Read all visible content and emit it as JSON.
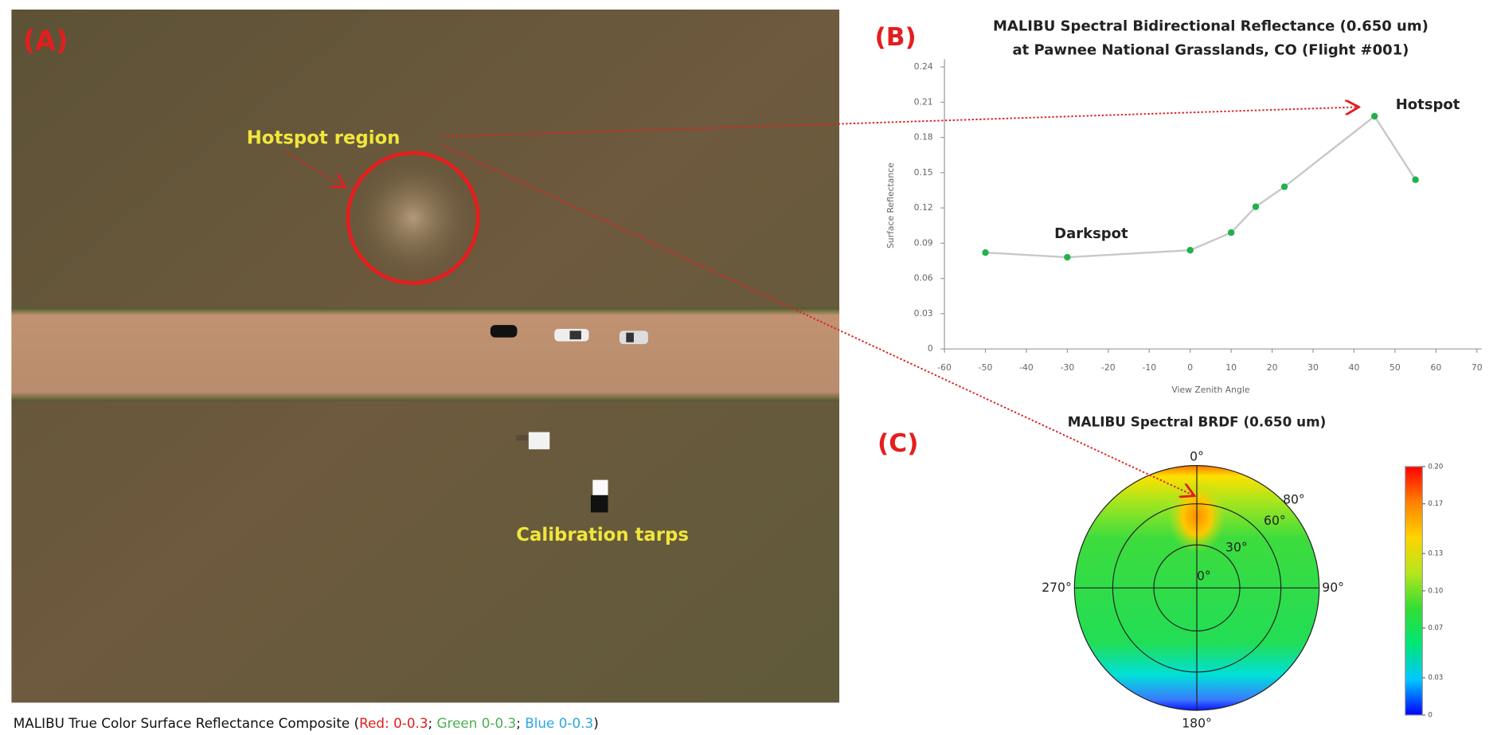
{
  "panels": {
    "a": {
      "label": "(A)",
      "hotspot_label": "Hotspot region",
      "tarps_label": "Calibration tarps",
      "caption": [
        "MALIBU True Color Surface Reflectance Composite (",
        "Red: 0-0.3",
        "; ",
        "Green 0-0.3",
        "; ",
        "Blue 0-0.3",
        ")"
      ]
    },
    "b": {
      "label": "(B)"
    },
    "c": {
      "label": "(C)"
    }
  },
  "chart_data": [
    {
      "type": "line",
      "title": [
        "MALIBU Spectral Bidirectional Reflectance (0.650 um)",
        "at Pawnee National Grasslands, CO (Flight #001)"
      ],
      "x_label": "View Zenith Angle",
      "y_label": "Surface Reflectance",
      "x": [
        -50,
        -30,
        0,
        10,
        16,
        23,
        45,
        55
      ],
      "values": [
        0.082,
        0.078,
        0.084,
        0.099,
        0.121,
        0.138,
        0.198,
        0.144
      ],
      "line_color": "#c8c8c8",
      "marker_color": "#22b14c",
      "xlim": [
        -60,
        70
      ],
      "xticks": [
        -60,
        -50,
        -40,
        -30,
        -20,
        -10,
        0,
        10,
        20,
        30,
        40,
        50,
        60,
        70
      ],
      "ylim": [
        0,
        0.24
      ],
      "yticks": [
        0,
        0.03,
        0.06,
        0.09,
        0.12,
        0.15,
        0.18,
        0.21,
        0.24
      ],
      "annotations": [
        "Darkspot",
        "Hotspot"
      ],
      "grid": false
    },
    {
      "type": "polar",
      "title": "MALIBU Spectral BRDF (0.650 um)",
      "angle_labels": [
        "0°",
        "90°",
        "180°",
        "270°"
      ],
      "radial_labels": [
        "0°",
        "30°",
        "60°",
        "80°"
      ],
      "clim": [
        0,
        0.2
      ],
      "cticks": [
        0,
        0.03,
        0.07,
        {
          "value": 0.1,
          "label": "0.10"
        },
        0.13,
        0.17,
        {
          "value": 0.2,
          "label": "0.20"
        }
      ],
      "colormap": [
        "#0000ff",
        "#00c8ff",
        "#00e676",
        "#33dd33",
        "#b5e61d",
        "#ffd400",
        "#ff8000",
        "#ff0000"
      ]
    }
  ]
}
